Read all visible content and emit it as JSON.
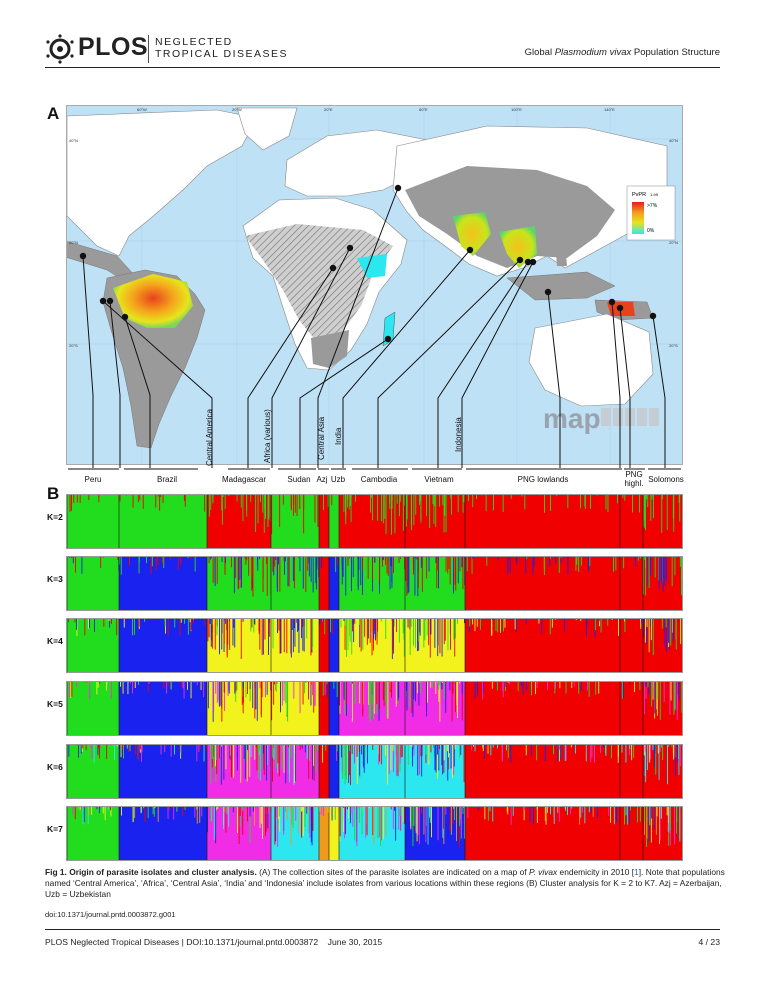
{
  "header": {
    "logo_text": "PLOS",
    "journal_line1": "NEGLECTED",
    "journal_line2": "TROPICAL DISEASES",
    "running_head_pre": "Global ",
    "running_head_italic": "Plasmodium vivax",
    "running_head_post": " Population Structure"
  },
  "panel_a": {
    "letter": "A",
    "legend_title": "PvPR",
    "legend_sub": "1-99",
    "legend_high": ">7%",
    "legend_low": "0%",
    "watermark": "map",
    "lat_labels": [
      "40°N",
      "20°N",
      "20°S"
    ],
    "lon_labels": [
      "60°W",
      "20°W",
      "20°E",
      "60°E",
      "100°E",
      "140°E"
    ]
  },
  "populations": {
    "bottom_labels": [
      "Peru",
      "Brazil",
      "Madagascar",
      "Sudan",
      "Azj",
      "Uzb",
      "Cambodia",
      "Vietnam",
      "PNG lowlands",
      "PNG highl.",
      "Solomons"
    ],
    "vertical_labels": [
      "Central America",
      "Africa (various)",
      "Central Asia",
      "India",
      "Indonesia"
    ]
  },
  "panel_b": {
    "letter": "B",
    "k_labels": [
      "K=2",
      "K=3",
      "K=4",
      "K=5",
      "K=6",
      "K=7"
    ]
  },
  "colors": {
    "green": "#22dd1e",
    "red": "#f00000",
    "blue": "#1a22f0",
    "yellow": "#f2f21c",
    "magenta": "#f02ce6",
    "cyan": "#2ce6f0",
    "orange": "#f09a1c",
    "ocean": "#bfe1f6",
    "land": "#ffffff",
    "endemic_grey": "#9a9a9a"
  },
  "caption": {
    "title": "Fig 1. Origin of parasite isolates and cluster analysis.",
    "text1": " (A) The collection sites of the parasite isolates are indicated on a map of ",
    "italic": "P. vivax",
    "text2": " endemicity in 2010 [",
    "ref": "1",
    "text3": "]. Note that populations named ‘Central America’, ‘Africa’, ‘Central Asia’, ‘India’ and ‘Indonesia’ include isolates from various locations within these regions (B) Cluster analysis for K = 2 to K7. Azj = Azerbaijan, Uzb = Uzbekistan"
  },
  "doi_line": "doi:10.1371/journal.pntd.0003872.g001",
  "footer": {
    "left": "PLOS Neglected Tropical Diseases | DOI:10.1371/journal.pntd.0003872    June 30, 2015",
    "page": "4 / 23"
  }
}
